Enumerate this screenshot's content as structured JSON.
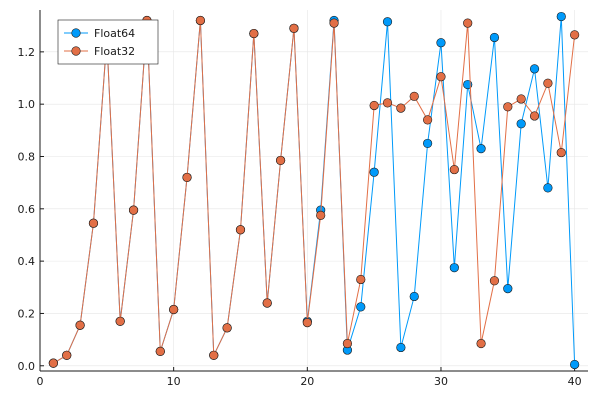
{
  "chart_data": {
    "type": "line",
    "markers": true,
    "title": "",
    "xlabel": "",
    "ylabel": "",
    "xlim": [
      0,
      41
    ],
    "ylim": [
      -0.02,
      1.36
    ],
    "xticks": [
      0,
      10,
      20,
      30,
      40
    ],
    "yticks": [
      0.0,
      0.2,
      0.4,
      0.6,
      0.8,
      1.0,
      1.2
    ],
    "ytick_labels": [
      "0.0",
      "0.2",
      "0.4",
      "0.6",
      "0.8",
      "1.0",
      "1.2"
    ],
    "grid": true,
    "legend": "top-left",
    "x": [
      1,
      2,
      3,
      4,
      5,
      6,
      7,
      8,
      9,
      10,
      11,
      12,
      13,
      14,
      15,
      16,
      17,
      18,
      19,
      20,
      21,
      22,
      23,
      24,
      25,
      26,
      27,
      28,
      29,
      30,
      31,
      32,
      33,
      34,
      35,
      36,
      37,
      38,
      39,
      40
    ],
    "series": [
      {
        "name": "Float64",
        "color": "#009AFA",
        "values": [
          0.01,
          0.04,
          0.155,
          0.545,
          1.25,
          0.17,
          0.595,
          1.32,
          0.055,
          0.215,
          0.72,
          1.32,
          0.04,
          0.145,
          0.52,
          1.27,
          0.24,
          0.785,
          1.29,
          0.17,
          0.595,
          1.32,
          0.06,
          0.225,
          0.74,
          1.315,
          0.07,
          0.265,
          0.85,
          1.235,
          0.375,
          1.075,
          0.83,
          1.255,
          0.295,
          0.925,
          1.135,
          0.68,
          1.335,
          0.005
        ]
      },
      {
        "name": "Float32",
        "color": "#E26F46",
        "values": [
          0.01,
          0.04,
          0.155,
          0.545,
          1.25,
          0.17,
          0.595,
          1.32,
          0.055,
          0.215,
          0.72,
          1.32,
          0.04,
          0.145,
          0.52,
          1.27,
          0.24,
          0.785,
          1.29,
          0.165,
          0.575,
          1.31,
          0.085,
          0.33,
          0.995,
          1.005,
          0.985,
          1.03,
          0.94,
          1.105,
          0.75,
          1.31,
          0.085,
          0.325,
          0.99,
          1.02,
          0.955,
          1.08,
          0.815,
          1.265
        ]
      }
    ]
  }
}
